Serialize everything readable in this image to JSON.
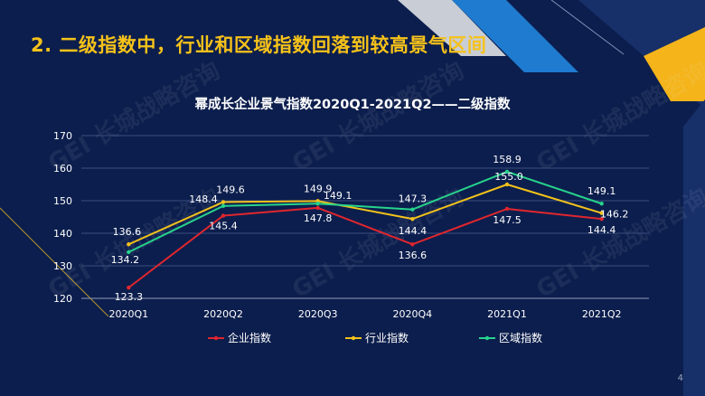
{
  "slide": {
    "title": "2. 二级指数中，行业和区域指数回落到较高景气区间",
    "page_number": "4",
    "watermark": "GEI 长城战略咨询"
  },
  "colors": {
    "background": "#0c1e4d",
    "title": "#f6c21a",
    "accent_gray": "#c8cdd6",
    "accent_blue": "#1e7bd0",
    "accent_gold": "#f4b41a"
  },
  "chart_data": {
    "type": "line",
    "title": "幂成长企业景气指数2020Q1-2021Q2——二级指数",
    "categories": [
      "2020Q1",
      "2020Q2",
      "2020Q3",
      "2020Q4",
      "2021Q1",
      "2021Q2"
    ],
    "ylim": [
      120,
      170
    ],
    "yticks": [
      120,
      130,
      140,
      150,
      160,
      170
    ],
    "grid": true,
    "legend_position": "bottom",
    "series": [
      {
        "name": "企业指数",
        "color": "#e0262e",
        "values": [
          123.3,
          145.4,
          147.8,
          136.6,
          147.5,
          144.4
        ]
      },
      {
        "name": "行业指数",
        "color": "#f2c21b",
        "values": [
          136.6,
          149.6,
          149.9,
          144.4,
          155.0,
          146.2
        ]
      },
      {
        "name": "区域指数",
        "color": "#27d38c",
        "values": [
          134.2,
          148.4,
          149.1,
          147.3,
          158.9,
          149.1
        ]
      }
    ],
    "data_labels": [
      {
        "series": 0,
        "index": 0,
        "text": "123.3"
      },
      {
        "series": 0,
        "index": 1,
        "text": "145.4"
      },
      {
        "series": 0,
        "index": 2,
        "text": "147.8"
      },
      {
        "series": 0,
        "index": 3,
        "text": "136.6"
      },
      {
        "series": 0,
        "index": 4,
        "text": "147.5"
      },
      {
        "series": 0,
        "index": 5,
        "text": "144.4"
      },
      {
        "series": 1,
        "index": 0,
        "text": "136.6"
      },
      {
        "series": 1,
        "index": 1,
        "text": "149.6"
      },
      {
        "series": 1,
        "index": 2,
        "text": "149.9"
      },
      {
        "series": 1,
        "index": 3,
        "text": "144.4"
      },
      {
        "series": 1,
        "index": 4,
        "text": "155.0"
      },
      {
        "series": 1,
        "index": 5,
        "text": "146.2"
      },
      {
        "series": 2,
        "index": 0,
        "text": "134.2"
      },
      {
        "series": 2,
        "index": 1,
        "text": "148.4"
      },
      {
        "series": 2,
        "index": 2,
        "text": "149.1"
      },
      {
        "series": 2,
        "index": 3,
        "text": "147.3"
      },
      {
        "series": 2,
        "index": 4,
        "text": "158.9"
      },
      {
        "series": 2,
        "index": 5,
        "text": "149.1"
      }
    ]
  }
}
